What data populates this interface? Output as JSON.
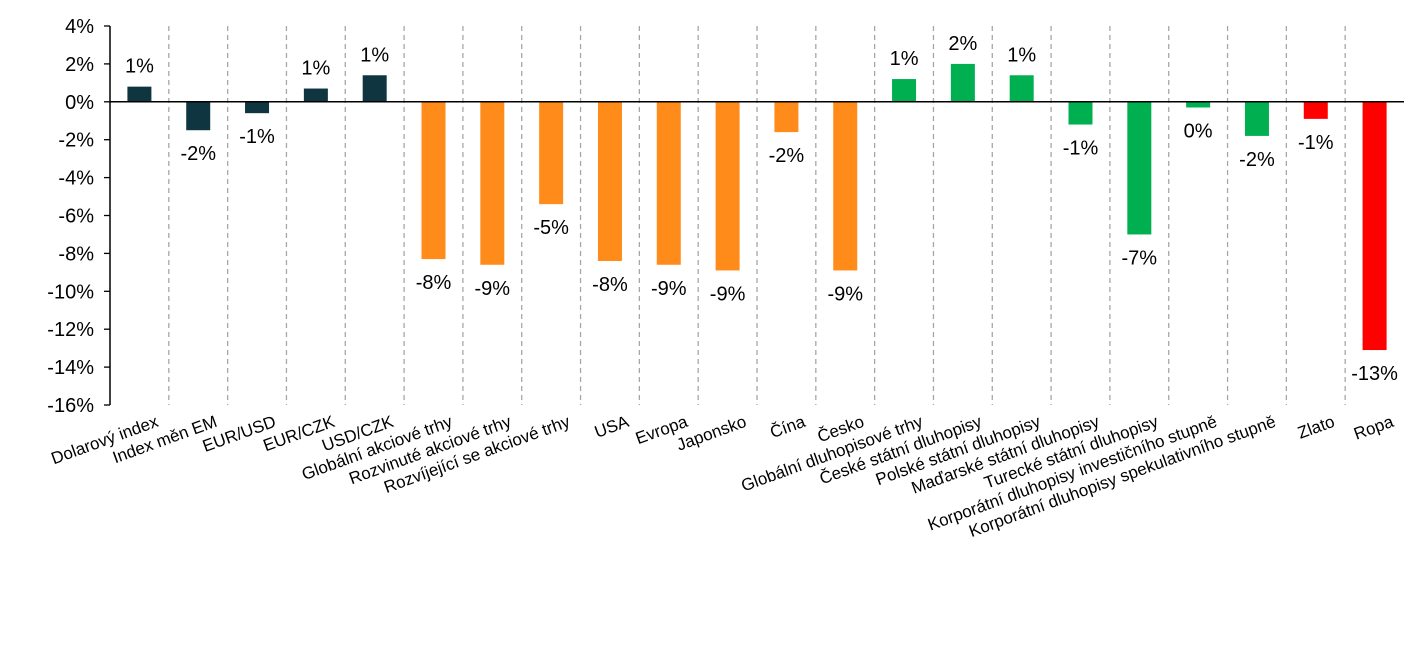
{
  "chart_data": {
    "type": "bar",
    "title": "",
    "xlabel": "",
    "ylabel": "",
    "ylim": [
      -16,
      4
    ],
    "yticks": [
      4,
      2,
      0,
      -2,
      -4,
      -6,
      -8,
      -10,
      -12,
      -14,
      -16
    ],
    "tick_suffix": "%",
    "grid": "vertical dashed separators",
    "legend": "none",
    "categories": [
      "Dolarový index",
      "Index měn EM",
      "EUR/USD",
      "EUR/CZK",
      "USD/CZK",
      "Globální akciové trhy",
      "Rozvinuté akciové trhy",
      "Rozvíjející se akciové trhy",
      "USA",
      "Evropa",
      "Japonsko",
      "Čína",
      "Česko",
      "Globální dluhopisové trhy",
      "České státní dluhopisy",
      "Polské státní dluhopisy",
      "Maďarské státní dluhopisy",
      "Turecké státní dluhopisy",
      "Korporátní dluhopisy investičního stupně",
      "Korporátní dluhopisy spekulativního stupně",
      "Zlato",
      "Ropa"
    ],
    "values": [
      0.8,
      -1.5,
      -0.6,
      0.7,
      1.4,
      -8.3,
      -8.6,
      -5.4,
      -8.4,
      -8.6,
      -8.9,
      -1.6,
      -8.9,
      1.2,
      2.0,
      1.4,
      -1.2,
      -7.0,
      -0.3,
      -1.8,
      -0.9,
      -13.1
    ],
    "data_labels": [
      "1%",
      "-2%",
      "-1%",
      "1%",
      "1%",
      "-8%",
      "-9%",
      "-5%",
      "-8%",
      "-9%",
      "-9%",
      "-2%",
      "-9%",
      "1%",
      "2%",
      "1%",
      "-1%",
      "-7%",
      "0%",
      "-2%",
      "-1%",
      "-13%"
    ],
    "bar_colors": [
      "#0f3640",
      "#0f3640",
      "#0f3640",
      "#0f3640",
      "#0f3640",
      "#ff8c1a",
      "#ff8c1a",
      "#ff8c1a",
      "#ff8c1a",
      "#ff8c1a",
      "#ff8c1a",
      "#ff8c1a",
      "#ff8c1a",
      "#00b050",
      "#00b050",
      "#00b050",
      "#00b050",
      "#00b050",
      "#00b050",
      "#00b050",
      "#ff0000",
      "#ff0000"
    ],
    "axis_color": "#000000",
    "separator_color": "#a6a6a6"
  }
}
